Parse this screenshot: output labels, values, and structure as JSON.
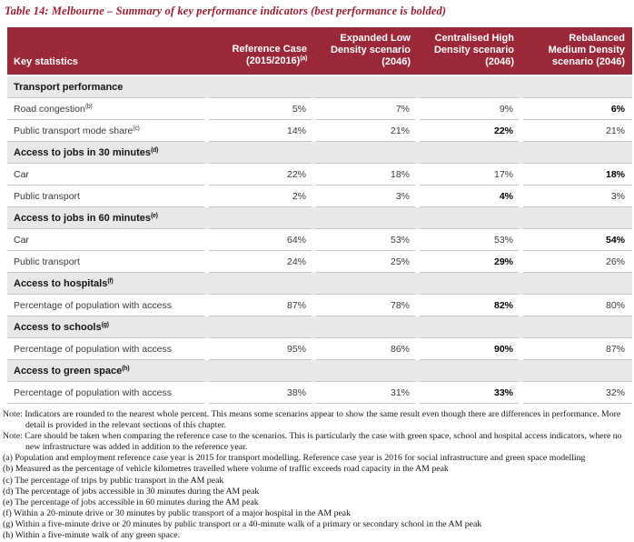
{
  "title": "Table 14: Melbourne – Summary of key performance indicators (best performance is bolded)",
  "colors": {
    "header_maroon": "#9b2839",
    "title_maroon": "#972133",
    "section_gray": "#e9e8e6",
    "separator_gray": "#c5c5c5"
  },
  "table": {
    "header": [
      {
        "text": "Key statistics",
        "sup": ""
      },
      {
        "text": "Reference Case\n(2015/2016)",
        "sup": "(a)"
      },
      {
        "text": "Expanded Low\nDensity scenario\n(2046)",
        "sup": ""
      },
      {
        "text": "Centralised High\nDensity scenario\n(2046)",
        "sup": ""
      },
      {
        "text": "Rebalanced\nMedium Density\nscenario (2046)",
        "sup": ""
      }
    ],
    "sections": [
      {
        "heading": "Transport performance",
        "sup": "",
        "rows": [
          {
            "label": "Road congestion",
            "sup": "(b)",
            "values": [
              "5%",
              "7%",
              "9%",
              "6%"
            ],
            "bold_value_index": 3
          },
          {
            "label": "Public transport mode share",
            "sup": "(c)",
            "values": [
              "14%",
              "21%",
              "22%",
              "21%"
            ],
            "bold_value_index": 2
          }
        ]
      },
      {
        "heading": "Access to jobs in 30 minutes",
        "sup": "(d)",
        "rows": [
          {
            "label": "Car",
            "sup": "",
            "values": [
              "22%",
              "18%",
              "17%",
              "18%"
            ],
            "bold_value_index": 3
          },
          {
            "label": "Public transport",
            "sup": "",
            "values": [
              "2%",
              "3%",
              "4%",
              "3%"
            ],
            "bold_value_index": 2
          }
        ]
      },
      {
        "heading": "Access to jobs in 60 minutes",
        "sup": "(e)",
        "rows": [
          {
            "label": "Car",
            "sup": "",
            "values": [
              "64%",
              "53%",
              "53%",
              "54%"
            ],
            "bold_value_index": 3
          },
          {
            "label": "Public transport",
            "sup": "",
            "values": [
              "24%",
              "25%",
              "29%",
              "26%"
            ],
            "bold_value_index": 2
          }
        ]
      },
      {
        "heading": "Access to hospitals",
        "sup": "(f)",
        "rows": [
          {
            "label": "Percentage of population with access",
            "sup": "",
            "values": [
              "87%",
              "78%",
              "82%",
              "80%"
            ],
            "bold_value_index": 2
          }
        ]
      },
      {
        "heading": "Access to schools",
        "sup": "(g)",
        "rows": [
          {
            "label": "Percentage of population with access",
            "sup": "",
            "values": [
              "95%",
              "86%",
              "90%",
              "87%"
            ],
            "bold_value_index": 2
          }
        ]
      },
      {
        "heading": "Access to green space",
        "sup": "(h)",
        "rows": [
          {
            "label": "Percentage of population with access",
            "sup": "",
            "values": [
              "38%",
              "31%",
              "33%",
              "32%"
            ],
            "bold_value_index": 2
          }
        ]
      }
    ]
  },
  "notes": [
    "Note: Indicators are rounded to the nearest whole percent. This means some scenarios appear to show the same result even though there are differences in performance. More detail is provided in the relevant sections of this chapter.",
    "Note: Care should be taken when comparing the reference case to the scenarios. This is particularly the case with green space, school and hospital access indicators, where no new infrastructure was added in addition to the reference year.",
    "(a) Population and employment reference case year is 2015 for transport modelling. Reference case year is 2016 for social infrastructure and green space modelling",
    "(b) Measured as the percentage of vehicle kilometres travelled where volume of traffic exceeds road capacity in the AM peak",
    "(c) The percentage of trips by public transport in the AM peak",
    "(d) The percentage of jobs accessible in 30 minutes during the AM peak",
    "(e) The percentage of jobs accessible in 60 minutes during the AM peak",
    "(f) Within a 20-minute drive or 30 minutes by public transport of a major hospital in the AM peak",
    "(g) Within a five-minute drive or 20 minutes by public transport or a 40-minute walk of a primary or secondary school in the AM peak",
    "(h) Within a five-minute walk of any green space."
  ]
}
